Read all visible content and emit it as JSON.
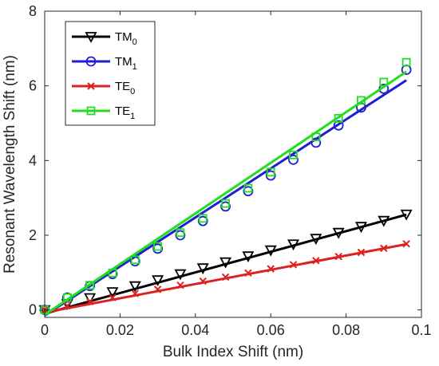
{
  "chart_data": {
    "type": "line",
    "title": "",
    "xlabel": "Bulk Index Shift (nm)",
    "ylabel": "Resonant Wavelength Shift (nm)",
    "xlim": [
      0,
      0.1
    ],
    "ylim": [
      -0.2,
      8
    ],
    "xticks": [
      0,
      0.02,
      0.04,
      0.06,
      0.08,
      0.1
    ],
    "xtick_labels": [
      "0",
      "0.02",
      "0.04",
      "0.06",
      "0.08",
      "0.1"
    ],
    "yticks": [
      0,
      2,
      4,
      6,
      8
    ],
    "ytick_labels": [
      "0",
      "2",
      "4",
      "6",
      "8"
    ],
    "grid": false,
    "legend_position": "top-left",
    "x": [
      0,
      0.006,
      0.012,
      0.018,
      0.024,
      0.03,
      0.036,
      0.042,
      0.048,
      0.054,
      0.06,
      0.066,
      0.072,
      0.078,
      0.084,
      0.09,
      0.096
    ],
    "series": [
      {
        "name": "TM",
        "subscript": "0",
        "color": "#000000",
        "marker": "triangle-down",
        "values": [
          0,
          0.16,
          0.32,
          0.48,
          0.64,
          0.8,
          0.96,
          1.12,
          1.28,
          1.44,
          1.6,
          1.76,
          1.91,
          2.07,
          2.23,
          2.39,
          2.56
        ],
        "fit": [
          [
            0,
            -0.1
          ],
          [
            0.096,
            2.55
          ]
        ]
      },
      {
        "name": "TM",
        "subscript": "1",
        "color": "#1f1fd1",
        "marker": "circle",
        "values": [
          0,
          0.33,
          0.64,
          0.96,
          1.3,
          1.64,
          2.0,
          2.38,
          2.77,
          3.18,
          3.6,
          4.02,
          4.48,
          4.94,
          5.42,
          5.92,
          6.43
        ],
        "fit": [
          [
            0,
            -0.15
          ],
          [
            0.096,
            6.15
          ]
        ]
      },
      {
        "name": "TE",
        "subscript": "0",
        "color": "#e02020",
        "marker": "x",
        "values": [
          0,
          0.11,
          0.22,
          0.33,
          0.44,
          0.55,
          0.66,
          0.77,
          0.88,
          0.99,
          1.1,
          1.21,
          1.32,
          1.43,
          1.54,
          1.65,
          1.77
        ],
        "fit": [
          [
            0,
            -0.07
          ],
          [
            0.096,
            1.76
          ]
        ]
      },
      {
        "name": "TE",
        "subscript": "1",
        "color": "#22dd22",
        "marker": "square",
        "values": [
          0,
          0.33,
          0.66,
          0.99,
          1.34,
          1.7,
          2.07,
          2.45,
          2.85,
          3.26,
          3.69,
          4.15,
          4.63,
          5.13,
          5.61,
          6.1,
          6.63
        ],
        "fit": [
          [
            0,
            -0.13
          ],
          [
            0.096,
            6.38
          ]
        ]
      }
    ]
  }
}
